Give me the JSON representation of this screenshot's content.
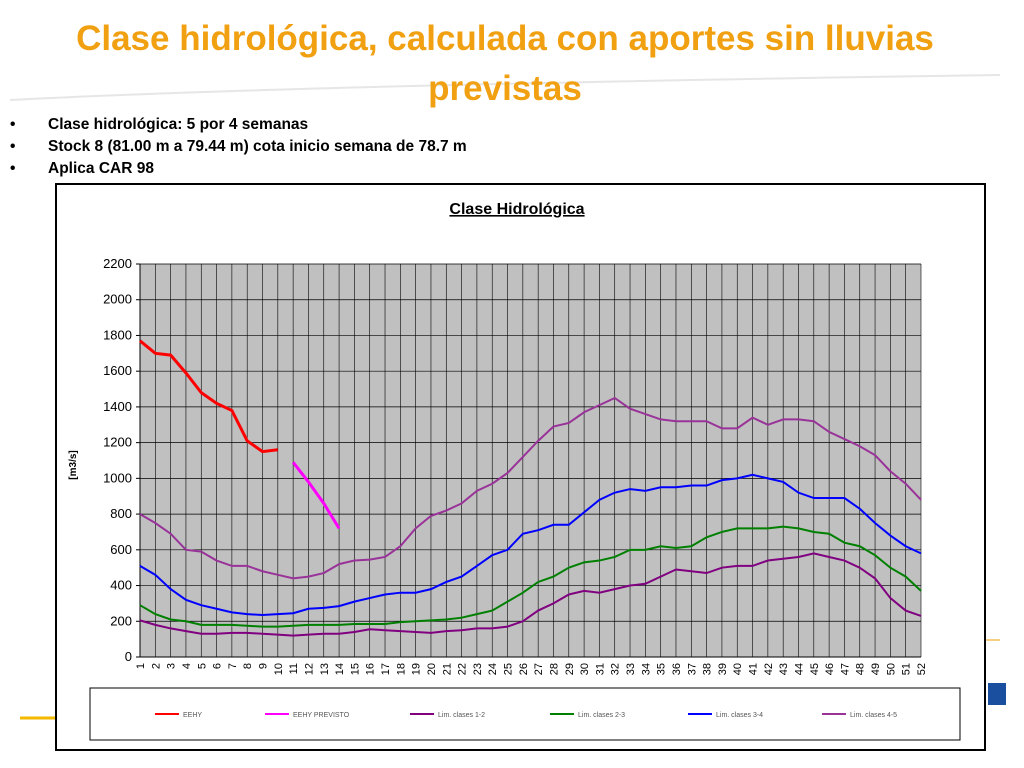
{
  "slide": {
    "title": "Clase hidrológica, calculada con aportes sin lluvias previstas",
    "bullets": [
      "Clase hidrológica:  5 por 4 semanas",
      "Stock 8 (81.00 m a 79.44 m) cota inicio semana de 78.7 m",
      "Aplica CAR 98"
    ]
  },
  "chart_data": {
    "type": "line",
    "title": "Clase Hidrológica",
    "y_label": "[m3/s]",
    "categories": [
      "1",
      "2",
      "3",
      "4",
      "5",
      "6",
      "7",
      "8",
      "9",
      "10",
      "11",
      "12",
      "13",
      "14",
      "15",
      "16",
      "17",
      "18",
      "19",
      "20",
      "21",
      "22",
      "23",
      "24",
      "25",
      "26",
      "27",
      "28",
      "29",
      "30",
      "31",
      "32",
      "33",
      "34",
      "35",
      "36",
      "37",
      "38",
      "39",
      "40",
      "41",
      "42",
      "43",
      "44",
      "45",
      "46",
      "47",
      "48",
      "49",
      "50",
      "51",
      "52"
    ],
    "ylim": [
      0,
      2200
    ],
    "yticks": [
      0,
      200,
      400,
      600,
      800,
      1000,
      1200,
      1400,
      1600,
      1800,
      2000,
      2200
    ],
    "grid": true,
    "legend": "bottom",
    "series": [
      {
        "name": "EEHY",
        "color": "#ff0000",
        "values": [
          1770,
          1700,
          1690,
          1590,
          1480,
          1420,
          1380,
          1210,
          1150,
          1160,
          null,
          null,
          null,
          null,
          null,
          null,
          null,
          null,
          null,
          null,
          null,
          null,
          null,
          null,
          null,
          null,
          null,
          null,
          null,
          null,
          null,
          null,
          null,
          null,
          null,
          null,
          null,
          null,
          null,
          null,
          null,
          null,
          null,
          null,
          null,
          null,
          null,
          null,
          null,
          null,
          null,
          null
        ]
      },
      {
        "name": "EEHY PREVISTO",
        "color": "#ff00ff",
        "values": [
          null,
          null,
          null,
          null,
          null,
          null,
          null,
          null,
          null,
          null,
          1090,
          980,
          860,
          720,
          null,
          null,
          null,
          null,
          null,
          null,
          null,
          null,
          null,
          null,
          null,
          null,
          null,
          null,
          null,
          null,
          null,
          null,
          null,
          null,
          null,
          null,
          null,
          null,
          null,
          null,
          null,
          null,
          null,
          null,
          null,
          null,
          null,
          null,
          null,
          null,
          null,
          null
        ]
      },
      {
        "name": "Lim. clases 1-2",
        "color": "#800080",
        "values": [
          205,
          180,
          160,
          145,
          130,
          130,
          135,
          135,
          130,
          125,
          120,
          125,
          130,
          130,
          140,
          155,
          150,
          145,
          140,
          135,
          145,
          150,
          160,
          160,
          170,
          200,
          260,
          300,
          350,
          370,
          360,
          380,
          400,
          410,
          450,
          490,
          480,
          470,
          500,
          510,
          510,
          540,
          550,
          560,
          580,
          560,
          540,
          500,
          440,
          330,
          260,
          230
        ]
      },
      {
        "name": "Lim. clases 2-3",
        "color": "#008000",
        "values": [
          290,
          240,
          210,
          200,
          180,
          180,
          180,
          175,
          170,
          170,
          175,
          180,
          180,
          180,
          185,
          185,
          185,
          195,
          200,
          205,
          210,
          220,
          240,
          260,
          310,
          360,
          420,
          450,
          500,
          530,
          540,
          560,
          600,
          600,
          620,
          610,
          620,
          670,
          700,
          720,
          720,
          720,
          730,
          720,
          700,
          690,
          640,
          620,
          570,
          500,
          450,
          370
        ]
      },
      {
        "name": "Lim. clases 3-4",
        "color": "#0000ff",
        "values": [
          510,
          460,
          380,
          320,
          290,
          270,
          250,
          240,
          235,
          240,
          245,
          270,
          275,
          285,
          310,
          330,
          350,
          360,
          360,
          380,
          420,
          450,
          510,
          570,
          600,
          690,
          710,
          740,
          740,
          810,
          880,
          920,
          940,
          930,
          950,
          950,
          960,
          960,
          990,
          1000,
          1020,
          1000,
          980,
          920,
          890,
          890,
          890,
          830,
          750,
          680,
          620,
          580
        ]
      },
      {
        "name": "Lim. clases 4-5",
        "color": "#993399",
        "values": [
          800,
          750,
          690,
          600,
          590,
          540,
          510,
          510,
          480,
          460,
          440,
          450,
          470,
          520,
          540,
          545,
          560,
          620,
          720,
          790,
          820,
          860,
          930,
          970,
          1030,
          1120,
          1210,
          1290,
          1310,
          1370,
          1410,
          1450,
          1390,
          1360,
          1330,
          1320,
          1320,
          1320,
          1280,
          1280,
          1340,
          1300,
          1330,
          1330,
          1320,
          1260,
          1220,
          1180,
          1130,
          1040,
          970,
          880
        ]
      }
    ]
  }
}
